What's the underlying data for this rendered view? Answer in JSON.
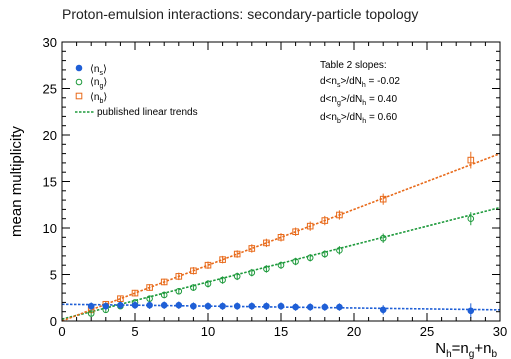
{
  "chart_data": {
    "type": "scatter",
    "title": "Proton-emulsion interactions: secondary-particle topology",
    "xlabel": {
      "main": "N",
      "sub": "h",
      "rest_1": "=n",
      "sub_1": "g",
      "rest_2": "+n",
      "sub_2": "b"
    },
    "ylabel": "mean multiplicity",
    "xlim": [
      0,
      30
    ],
    "ylim": [
      0,
      30
    ],
    "x_ticks": [
      "0",
      "5",
      "10",
      "15",
      "20",
      "25",
      "30"
    ],
    "y_ticks": [
      "0",
      "5",
      "10",
      "15",
      "20",
      "25",
      "30"
    ],
    "grid": false,
    "legend_position": "top-left",
    "series": [
      {
        "name": {
          "pre": "⟨n",
          "sub": "s",
          "post": "⟩"
        },
        "marker": "filled-circle",
        "color": "#1f5fd6",
        "x": [
          2,
          3,
          4,
          5,
          6,
          7,
          8,
          9,
          10,
          11,
          12,
          13,
          14,
          15,
          16,
          17,
          18,
          19,
          22,
          28
        ],
        "y": [
          1.6,
          1.6,
          1.7,
          1.7,
          1.7,
          1.7,
          1.7,
          1.6,
          1.6,
          1.6,
          1.6,
          1.6,
          1.6,
          1.6,
          1.5,
          1.5,
          1.5,
          1.5,
          1.2,
          1.1
        ],
        "err": [
          0.4,
          0.4,
          0.4,
          0.4,
          0.4,
          0.4,
          0.4,
          0.4,
          0.4,
          0.4,
          0.4,
          0.4,
          0.4,
          0.4,
          0.4,
          0.4,
          0.4,
          0.4,
          0.5,
          0.8
        ]
      },
      {
        "name": {
          "pre": "⟨n",
          "sub": "g",
          "post": "⟩"
        },
        "marker": "open-circle",
        "color": "#1e9a3c",
        "x": [
          2,
          3,
          4,
          5,
          6,
          7,
          8,
          9,
          10,
          11,
          12,
          13,
          14,
          15,
          16,
          17,
          18,
          19,
          22,
          28
        ],
        "y": [
          0.8,
          1.2,
          1.6,
          2.0,
          2.4,
          2.8,
          3.2,
          3.6,
          4.0,
          4.4,
          4.8,
          5.2,
          5.6,
          6.0,
          6.4,
          6.8,
          7.2,
          7.6,
          8.9,
          11.0
        ],
        "err": [
          0.3,
          0.3,
          0.3,
          0.3,
          0.35,
          0.35,
          0.35,
          0.35,
          0.4,
          0.4,
          0.4,
          0.4,
          0.4,
          0.4,
          0.4,
          0.4,
          0.4,
          0.45,
          0.5,
          0.7
        ]
      },
      {
        "name": {
          "pre": "⟨n",
          "sub": "b",
          "post": "⟩"
        },
        "marker": "open-square",
        "color": "#e86a1a",
        "x": [
          2,
          3,
          4,
          5,
          6,
          7,
          8,
          9,
          10,
          11,
          12,
          13,
          14,
          15,
          16,
          17,
          18,
          19,
          22,
          28
        ],
        "y": [
          1.2,
          1.8,
          2.4,
          3.0,
          3.6,
          4.2,
          4.8,
          5.4,
          6.0,
          6.6,
          7.2,
          7.8,
          8.4,
          9.0,
          9.6,
          10.2,
          10.8,
          11.4,
          13.1,
          17.3
        ],
        "err": [
          0.3,
          0.3,
          0.3,
          0.35,
          0.35,
          0.35,
          0.4,
          0.4,
          0.4,
          0.4,
          0.4,
          0.45,
          0.45,
          0.45,
          0.45,
          0.5,
          0.5,
          0.5,
          0.6,
          0.9
        ]
      }
    ],
    "trend_lines": {
      "legend_label": "published linear trends",
      "lines": [
        {
          "color": "#1f5fd6",
          "x": [
            0,
            30
          ],
          "y": [
            1.8,
            1.2
          ]
        },
        {
          "color": "#1e9a3c",
          "x": [
            0,
            30
          ],
          "y": [
            0.2,
            12.2
          ]
        },
        {
          "color": "#e86a1a",
          "x": [
            0,
            30
          ],
          "y": [
            0.0,
            18.0
          ]
        }
      ]
    },
    "annotation": {
      "title": "Table 2 slopes:",
      "lines": [
        {
          "pre": "d<n",
          "sub1": "s",
          "mid": ">/dN",
          "sub2": "h",
          "post": " = -0.02"
        },
        {
          "pre": "d<n",
          "sub1": "g",
          "mid": ">/dN",
          "sub2": "h",
          "post": " = 0.40"
        },
        {
          "pre": "d<n",
          "sub1": "b",
          "mid": ">/dN",
          "sub2": "h",
          "post": " = 0.60"
        }
      ]
    }
  }
}
